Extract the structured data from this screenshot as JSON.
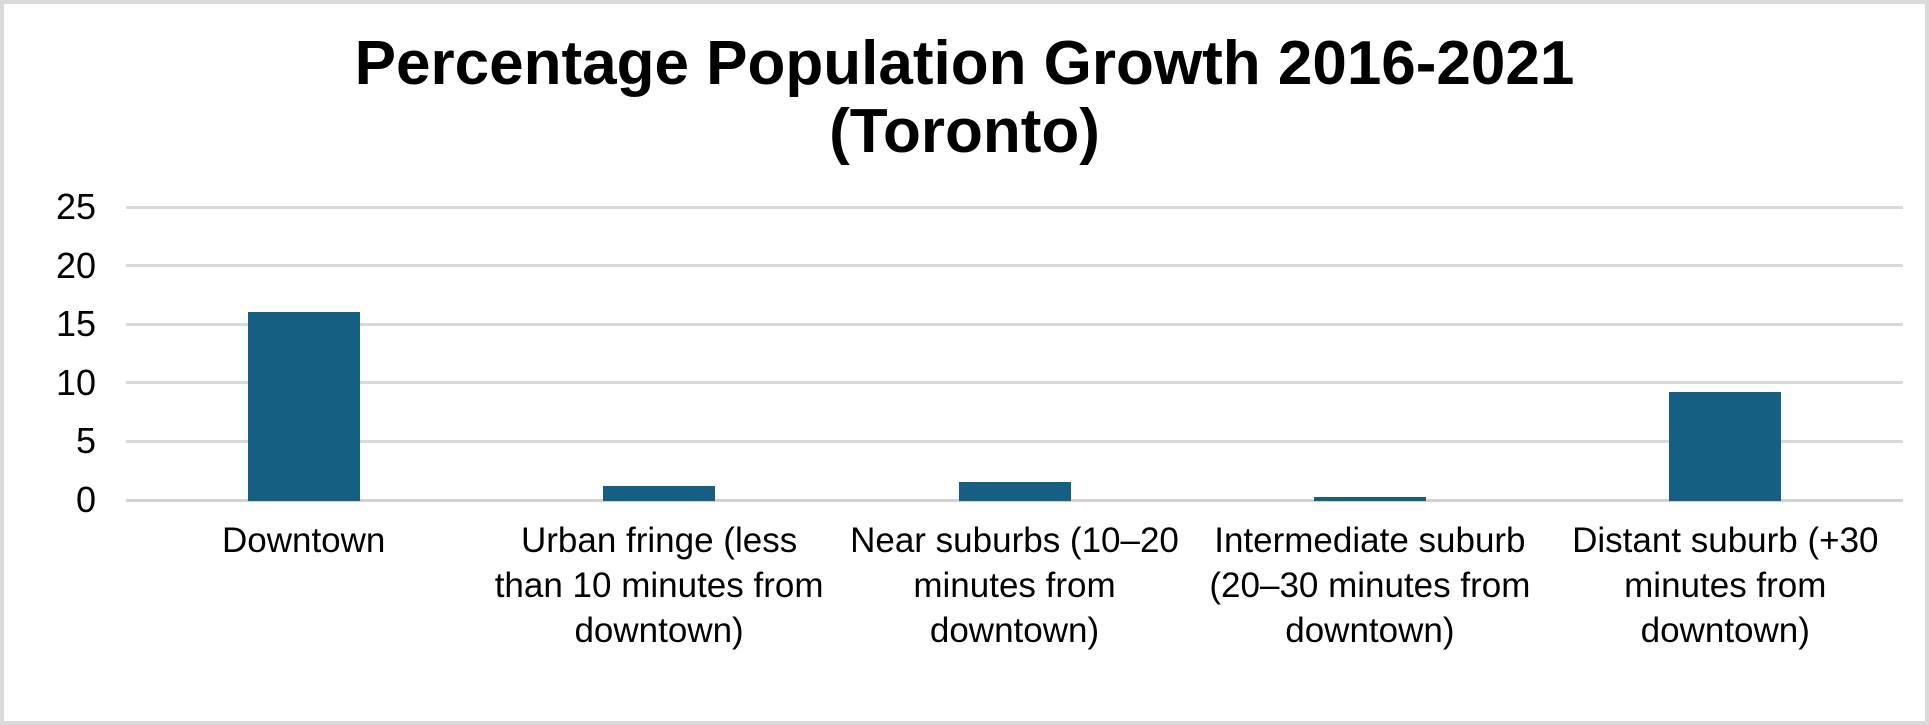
{
  "title": {
    "line1": "Percentage Population Growth 2016-2021",
    "line2": "(Toronto)"
  },
  "chart_data": {
    "type": "bar",
    "title": "Percentage Population Growth 2016-2021 (Toronto)",
    "categories": [
      "Downtown",
      "Urban fringe (less than 10 minutes from downtown)",
      "Near suburbs (10–20 minutes from downtown)",
      "Intermediate suburb (20–30 minutes from downtown)",
      "Distant suburb (+30 minutes from downtown)"
    ],
    "values": [
      16.1,
      1.3,
      1.6,
      0.3,
      9.3
    ],
    "xlabel": "",
    "ylabel": "",
    "ylim": [
      0,
      25
    ],
    "yticks": [
      0,
      5,
      10,
      15,
      20,
      25
    ],
    "grid": true,
    "legend": "none",
    "bar_color": "#156082",
    "gridline_color": "#d9d9d9"
  }
}
